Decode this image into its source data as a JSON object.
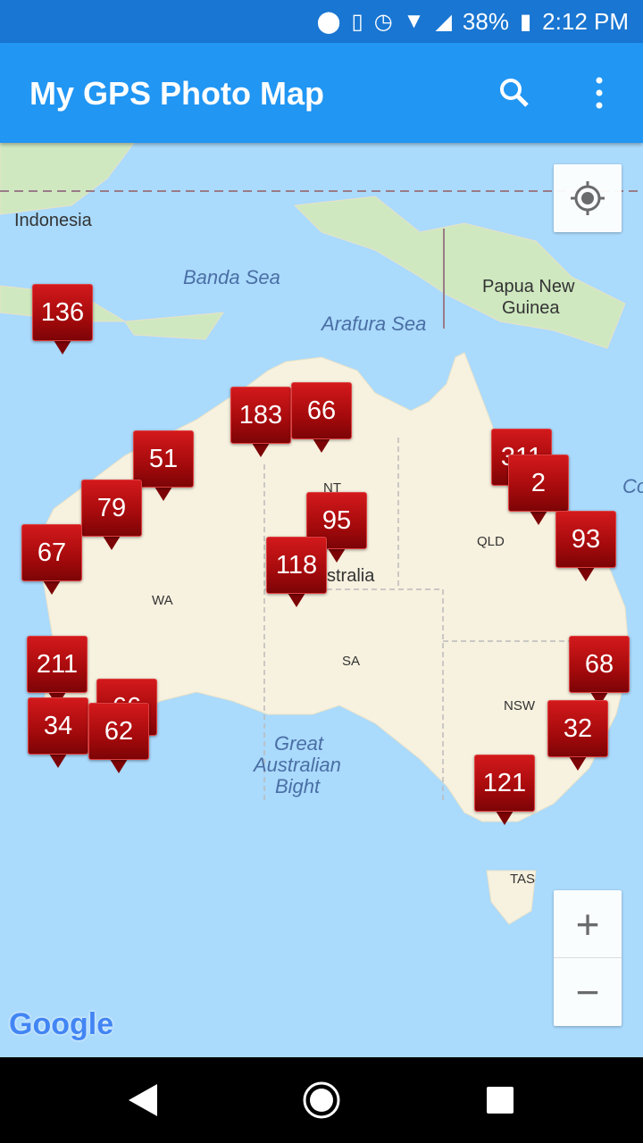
{
  "status_bar": {
    "battery": "38%",
    "time": "2:12 PM",
    "icons": [
      "location-icon",
      "vibrate-icon",
      "alarm-icon",
      "wifi-icon",
      "signal-icon",
      "battery-icon"
    ]
  },
  "app_bar": {
    "title": "My GPS Photo Map",
    "icons": [
      "search-icon",
      "more-vert-icon"
    ]
  },
  "map": {
    "labels": {
      "indonesia": "Indonesia",
      "banda": "Banda Sea",
      "arafura": "Arafura Sea",
      "png1": "Papua New",
      "png2": "Guinea",
      "coral": "Co",
      "nt": "NT",
      "qld": "QLD",
      "wa": "WA",
      "sa": "SA",
      "nsw": "NSW",
      "tas": "TAS",
      "australia": "stralia",
      "bight1": "Great",
      "bight2": "Australian",
      "bight3": "Bight"
    },
    "markers": [
      {
        "count": "136"
      },
      {
        "count": "183"
      },
      {
        "count": "66"
      },
      {
        "count": "51"
      },
      {
        "count": "311"
      },
      {
        "count": "2"
      },
      {
        "count": "79"
      },
      {
        "count": "95"
      },
      {
        "count": "93"
      },
      {
        "count": "67"
      },
      {
        "count": "118"
      },
      {
        "count": "211"
      },
      {
        "count": "66"
      },
      {
        "count": "68"
      },
      {
        "count": "34"
      },
      {
        "count": "62"
      },
      {
        "count": "32"
      },
      {
        "count": "121"
      }
    ],
    "zoom_in": "+",
    "zoom_out": "−",
    "logo": "Google"
  },
  "colors": {
    "appbar": "#2196f3",
    "statusbar": "#1976d2",
    "marker": "#b0100f",
    "water": "#aadafc",
    "land": "#f7f1df"
  }
}
